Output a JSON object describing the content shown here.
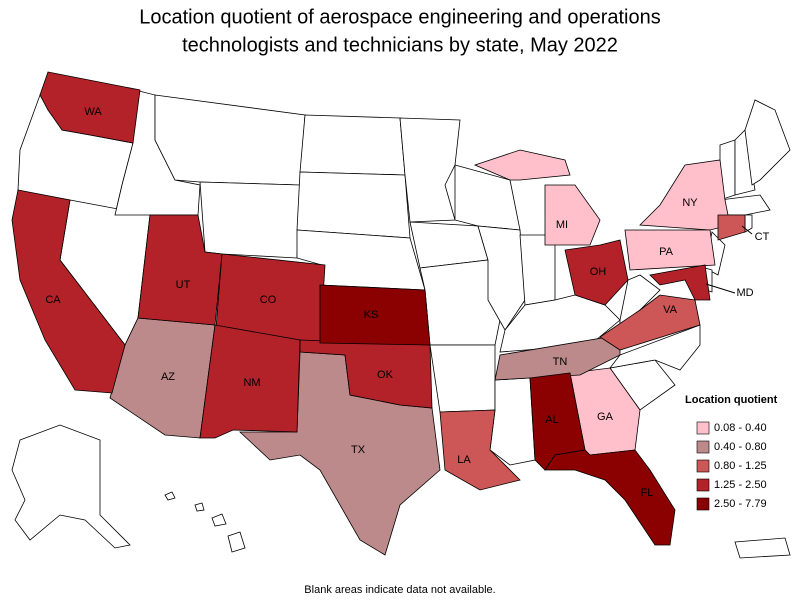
{
  "title_lines": [
    "Location quotient of aerospace engineering and operations",
    "technologists and technicians by state, May 2022"
  ],
  "legend": {
    "title": "Location quotient",
    "items": [
      {
        "label": "0.08 - 0.40",
        "color": "#ffc0cb",
        "states": [
          "MI",
          "NY",
          "PA",
          "GA"
        ]
      },
      {
        "label": "0.40 - 0.80",
        "color": "#bc8a8a",
        "states": [
          "AZ",
          "TX",
          "TN"
        ]
      },
      {
        "label": "0.80 - 1.25",
        "color": "#cd5656",
        "states": [
          "LA",
          "VA",
          "CT"
        ]
      },
      {
        "label": "1.25 - 2.50",
        "color": "#b22228",
        "states": [
          "WA",
          "CA",
          "UT",
          "CO",
          "NM",
          "OK",
          "OH",
          "MD"
        ]
      },
      {
        "label": "2.50 - 7.79",
        "color": "#8b0000",
        "states": [
          "KS",
          "AL",
          "FL"
        ]
      }
    ]
  },
  "note": "Blank areas indicate data not available."
}
